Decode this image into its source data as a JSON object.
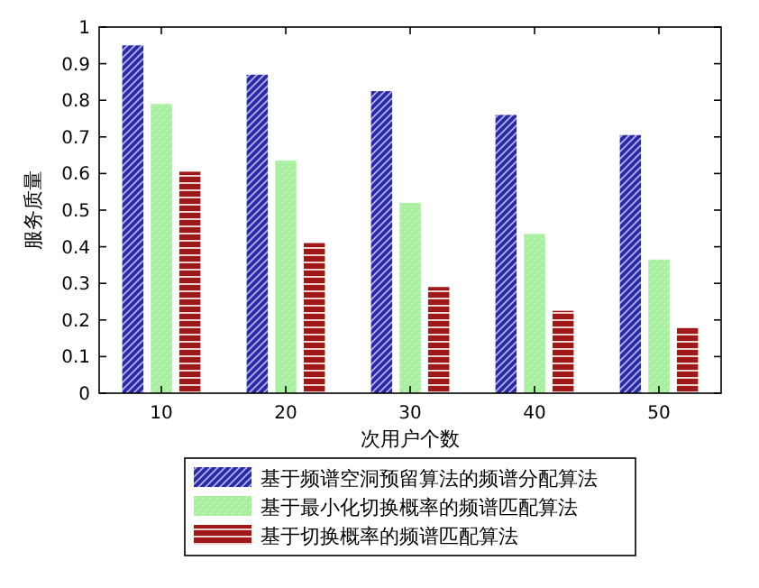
{
  "chart_data": {
    "type": "bar",
    "xlabel": "次用户个数",
    "ylabel": "服务质量",
    "categories": [
      "10",
      "20",
      "30",
      "40",
      "50"
    ],
    "ylim": [
      0,
      1
    ],
    "yticks": [
      0,
      0.1,
      0.2,
      0.3,
      0.4,
      0.5,
      0.6,
      0.7,
      0.8,
      0.9,
      1
    ],
    "legend": "bottom",
    "series": [
      {
        "name": "基于频谱空洞预留算法的频谱分配算法",
        "color": "#2a2aa8",
        "values": [
          0.95,
          0.87,
          0.825,
          0.76,
          0.705
        ]
      },
      {
        "name": "基于最小化切换概率的频谱匹配算法",
        "color": "#a8f0a0",
        "values": [
          0.79,
          0.635,
          0.52,
          0.435,
          0.365
        ]
      },
      {
        "name": "基于切换概率的频谱匹配算法",
        "color": "#a01818",
        "values": [
          0.605,
          0.41,
          0.29,
          0.225,
          0.18
        ]
      }
    ]
  }
}
